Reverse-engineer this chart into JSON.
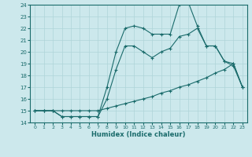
{
  "bg_color": "#cce8ec",
  "grid_color": "#b8d8dc",
  "line_color": "#1a6b6b",
  "xlabel": "Humidex (Indice chaleur)",
  "xlim_min": -0.5,
  "xlim_max": 23.5,
  "ylim_min": 14,
  "ylim_max": 24,
  "xticks": [
    0,
    1,
    2,
    3,
    4,
    5,
    6,
    7,
    8,
    9,
    10,
    11,
    12,
    13,
    14,
    15,
    16,
    17,
    18,
    19,
    20,
    21,
    22,
    23
  ],
  "yticks": [
    14,
    15,
    16,
    17,
    18,
    19,
    20,
    21,
    22,
    23,
    24
  ],
  "line_bottom": {
    "x": [
      0,
      1,
      2,
      3,
      4,
      5,
      6,
      7,
      8,
      9,
      10,
      11,
      12,
      13,
      14,
      15,
      16,
      17,
      18,
      19,
      20,
      21,
      22,
      23
    ],
    "y": [
      15,
      15,
      15,
      15,
      15,
      15,
      15,
      15,
      15.2,
      15.4,
      15.6,
      15.8,
      16.0,
      16.2,
      16.5,
      16.7,
      17.0,
      17.2,
      17.5,
      17.8,
      18.2,
      18.5,
      19.0,
      17.0
    ]
  },
  "line_mid": {
    "x": [
      0,
      1,
      2,
      3,
      4,
      5,
      6,
      7,
      8,
      9,
      10,
      11,
      12,
      13,
      14,
      15,
      16,
      17,
      18,
      19,
      20,
      21,
      22,
      23
    ],
    "y": [
      15,
      15,
      15,
      14.5,
      14.5,
      14.5,
      14.5,
      14.5,
      16.0,
      18.5,
      20.5,
      20.5,
      20.0,
      19.5,
      20.0,
      20.3,
      21.3,
      21.5,
      22.0,
      20.5,
      20.5,
      19.2,
      19.0,
      17.0
    ]
  },
  "line_top": {
    "x": [
      0,
      1,
      2,
      3,
      4,
      5,
      6,
      7,
      8,
      9,
      10,
      11,
      12,
      13,
      14,
      15,
      16,
      17,
      18,
      19,
      20,
      21,
      22,
      23
    ],
    "y": [
      15,
      15,
      15,
      14.5,
      14.5,
      14.5,
      14.5,
      14.5,
      17.0,
      20.0,
      22.0,
      22.2,
      22.0,
      21.5,
      21.5,
      21.5,
      24.0,
      24.2,
      22.2,
      20.5,
      20.5,
      19.2,
      18.8,
      17.0
    ]
  }
}
